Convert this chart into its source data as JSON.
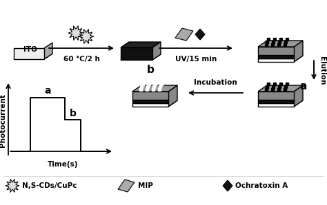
{
  "bg_color": "#ffffff",
  "text_color": "#000000",
  "step1_label": "ITO",
  "arrow1_label": "60 °C/2 h",
  "arrow2_label": "UV/15 min",
  "elution_label": "Elution",
  "incubation_label": "Incubation",
  "label_a": "a",
  "label_b": "b",
  "photocurrent_label": "Photocurrent",
  "time_label": "Time(s)",
  "legend_items": [
    "N,S-CDs/CuPc",
    "MIP",
    "Ochratoxin A"
  ]
}
